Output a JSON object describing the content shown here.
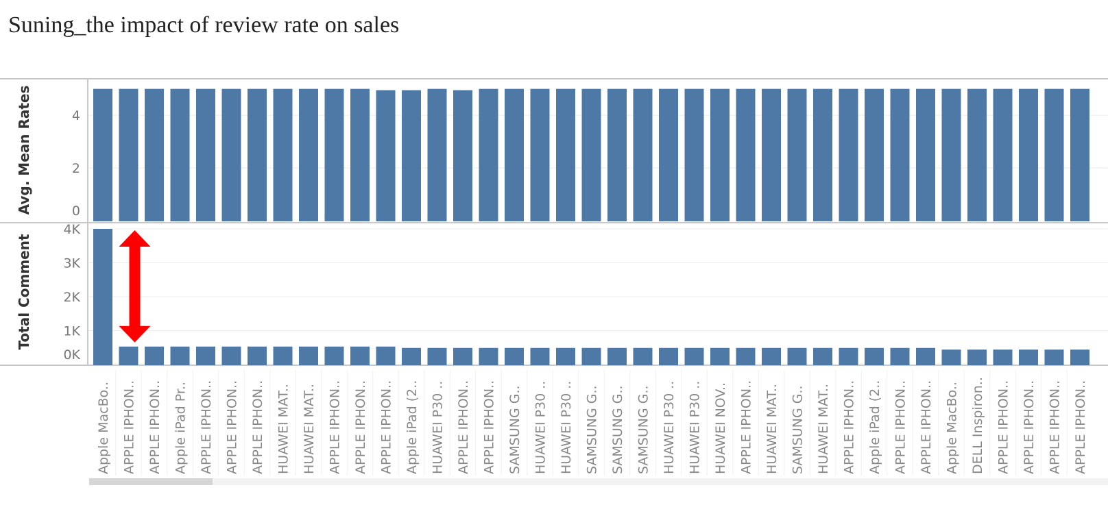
{
  "title": "Suning_the impact of review rate on sales",
  "colors": {
    "bar": "#4e79a7",
    "annotation": "#ff0000",
    "grid": "#ececec",
    "axis": "#c8c8c8"
  },
  "chart_data": [
    {
      "type": "bar",
      "ylabel": "Avg. Mean Rates",
      "ylim": [
        0,
        5.2
      ],
      "yticks": [
        0,
        2,
        4
      ],
      "ytick_labels": [
        "0",
        "2",
        "4"
      ],
      "grid": true,
      "categories": [
        "Apple MacBo..",
        "APPLE IPHON..",
        "APPLE IPHON..",
        "Apple iPad Pr..",
        "APPLE IPHON..",
        "APPLE IPHON..",
        "APPLE IPHON..",
        "HUAWEI MAT..",
        "HUAWEI MAT..",
        "APPLE IPHON..",
        "APPLE IPHON..",
        "APPLE IPHON..",
        "Apple iPad (2..",
        "HUAWEI P30 ..",
        "APPLE IPHON..",
        "APPLE IPHON..",
        "SAMSUNG G..",
        "HUAWEI P30 ..",
        "HUAWEI P30 ..",
        "SAMSUNG G..",
        "SAMSUNG G..",
        "SAMSUNG G..",
        "HUAWEI P30 ..",
        "HUAWEI P30 ..",
        "HUAWEI NOV..",
        "APPLE IPHON..",
        "HUAWEI MAT..",
        "SAMSUNG G..",
        "HUAWEI MAT..",
        "APPLE IPHON..",
        "Apple iPad (2..",
        "APPLE IPHON..",
        "APPLE IPHON..",
        "Apple MacBo..",
        "DELL Inspiron..",
        "APPLE IPHON..",
        "APPLE IPHON..",
        "APPLE IPHON..",
        "APPLE IPHON.."
      ],
      "values": [
        5.0,
        5.0,
        5.0,
        5.0,
        5.0,
        5.0,
        5.0,
        5.0,
        5.0,
        5.0,
        5.0,
        4.95,
        4.95,
        5.0,
        4.95,
        5.0,
        5.0,
        5.0,
        5.0,
        5.0,
        5.0,
        5.0,
        5.0,
        5.0,
        5.0,
        5.0,
        5.0,
        5.0,
        5.0,
        5.0,
        5.0,
        5.0,
        5.0,
        5.0,
        5.0,
        5.0,
        5.0,
        5.0,
        5.0
      ]
    },
    {
      "type": "bar",
      "ylabel": "Total Comment",
      "ylim": [
        0,
        4000
      ],
      "yticks": [
        0,
        1000,
        2000,
        3000,
        4000
      ],
      "ytick_labels": [
        "0K",
        "1K",
        "2K",
        "3K",
        "4K"
      ],
      "grid": true,
      "categories": [
        "Apple MacBo..",
        "APPLE IPHON..",
        "APPLE IPHON..",
        "Apple iPad Pr..",
        "APPLE IPHON..",
        "APPLE IPHON..",
        "APPLE IPHON..",
        "HUAWEI MAT..",
        "HUAWEI MAT..",
        "APPLE IPHON..",
        "APPLE IPHON..",
        "APPLE IPHON..",
        "Apple iPad (2..",
        "HUAWEI P30 ..",
        "APPLE IPHON..",
        "APPLE IPHON..",
        "SAMSUNG G..",
        "HUAWEI P30 ..",
        "HUAWEI P30 ..",
        "SAMSUNG G..",
        "SAMSUNG G..",
        "SAMSUNG G..",
        "HUAWEI P30 ..",
        "HUAWEI P30 ..",
        "HUAWEI NOV..",
        "APPLE IPHON..",
        "HUAWEI MAT..",
        "SAMSUNG G..",
        "HUAWEI MAT..",
        "APPLE IPHON..",
        "Apple iPad (2..",
        "APPLE IPHON..",
        "APPLE IPHON..",
        "Apple MacBo..",
        "DELL Inspiron..",
        "APPLE IPHON..",
        "APPLE IPHON..",
        "APPLE IPHON..",
        "APPLE IPHON.."
      ],
      "values": [
        4000,
        530,
        530,
        530,
        530,
        530,
        530,
        530,
        530,
        530,
        530,
        530,
        490,
        490,
        490,
        490,
        490,
        490,
        490,
        490,
        490,
        490,
        490,
        490,
        490,
        490,
        490,
        490,
        490,
        490,
        490,
        490,
        490,
        440,
        440,
        440,
        440,
        440,
        440
      ]
    }
  ],
  "annotation": {
    "type": "double-headed-arrow",
    "between_categories": [
      1,
      1
    ],
    "from_value": 4000,
    "to_value": 530
  }
}
